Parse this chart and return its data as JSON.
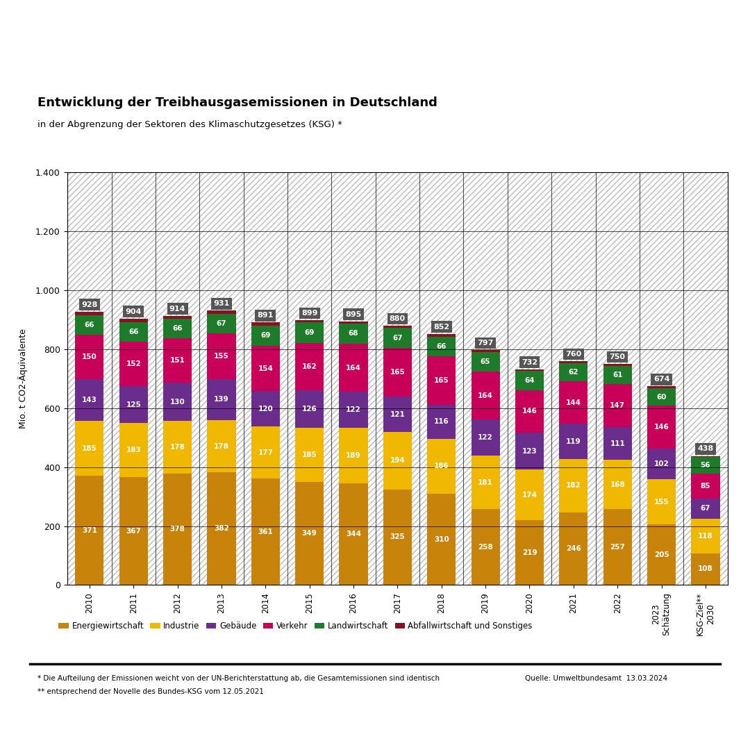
{
  "title": "Entwicklung der Treibhausgasemissionen in Deutschland",
  "subtitle": "in der Abgrenzung der Sektoren des Klimaschutzgesetzes (KSG) *",
  "ylabel": "Mio. t CO2-Äquivalente",
  "years": [
    "2010",
    "2011",
    "2012",
    "2013",
    "2014",
    "2015",
    "2016",
    "2017",
    "2018",
    "2019",
    "2020",
    "2021",
    "2022",
    "2023\nSchätzung",
    "KSG-Ziel**\n2030"
  ],
  "energiewirtschaft": [
    371,
    367,
    378,
    382,
    361,
    349,
    344,
    325,
    310,
    258,
    219,
    246,
    257,
    205,
    108
  ],
  "industrie": [
    185,
    183,
    178,
    178,
    177,
    185,
    189,
    194,
    186,
    181,
    174,
    182,
    168,
    155,
    118
  ],
  "gebaeude": [
    143,
    125,
    130,
    139,
    120,
    126,
    122,
    121,
    116,
    122,
    123,
    119,
    111,
    102,
    67
  ],
  "verkehr": [
    150,
    152,
    151,
    155,
    154,
    162,
    164,
    165,
    165,
    164,
    146,
    144,
    147,
    146,
    85
  ],
  "landwirtschaft": [
    66,
    66,
    66,
    67,
    69,
    69,
    68,
    67,
    66,
    65,
    64,
    62,
    61,
    60,
    56
  ],
  "abfall": [
    13,
    11,
    11,
    10,
    10,
    8,
    8,
    8,
    9,
    7,
    6,
    7,
    6,
    6,
    4
  ],
  "totals": [
    928,
    904,
    914,
    931,
    891,
    899,
    895,
    880,
    852,
    797,
    732,
    760,
    750,
    674,
    438
  ],
  "colors": {
    "energiewirtschaft": "#C8830A",
    "industrie": "#F0B800",
    "gebaeude": "#6B2D8B",
    "verkehr": "#C8005A",
    "landwirtschaft": "#1E7B2A",
    "abfall": "#8B1020"
  },
  "legend_labels": [
    "Energiewirtschaft",
    "Industrie",
    "Gebäude",
    "Verkehr",
    "Landwirtschaft",
    "Abfallwirtschaft und Sonstiges"
  ],
  "footnote1": "* Die Aufteilung der Emissionen weicht von der UN-Berichterstattung ab, die Gesamtemissionen sind identisch",
  "footnote2": "** entsprechend der Novelle des Bundes-KSG vom 12.05.2021",
  "source": "Quelle: Umweltbundesamt  13.03.2024",
  "ylim": [
    0,
    1400
  ],
  "yticks": [
    0,
    200,
    400,
    600,
    800,
    1000,
    1200,
    1400
  ],
  "ytick_labels": [
    "0",
    "200",
    "400",
    "600",
    "800",
    "1.000",
    "1.200",
    "1.400"
  ]
}
